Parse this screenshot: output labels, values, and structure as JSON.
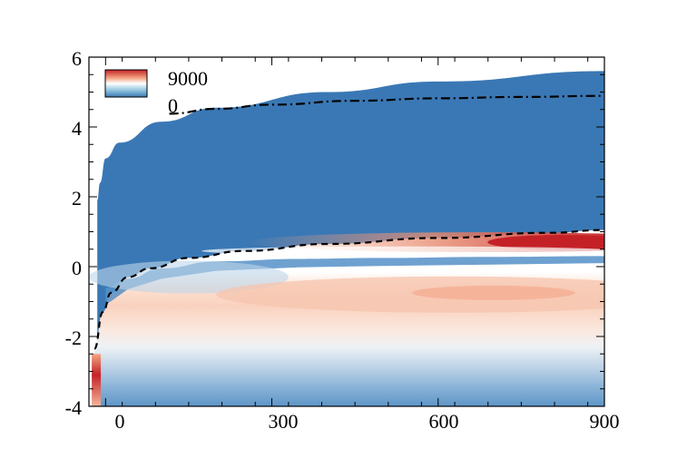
{
  "chart_data": {
    "type": "heatmap",
    "title": "",
    "xlabel": "",
    "ylabel": "",
    "xlim": [
      -30,
      900
    ],
    "ylim": [
      -4,
      6
    ],
    "x_ticks": [
      "0",
      "300",
      "600",
      "900"
    ],
    "y_ticks": [
      "6",
      "4",
      "2",
      "0",
      "-2",
      "-4"
    ],
    "legend": {
      "max_label": "9000",
      "min_label": "0",
      "placement": "top-left"
    },
    "colorbar": {
      "min": 0,
      "max": 9000,
      "low_color": "#3a78b5",
      "mid_color": "#ffffff",
      "high_color": "#c42127"
    },
    "upper_boundary": {
      "x": [
        -15,
        -15,
        -10,
        0,
        25,
        100,
        200,
        400,
        600,
        900
      ],
      "y": [
        1.9,
        1.9,
        2.4,
        3.1,
        3.55,
        4.15,
        4.55,
        5.0,
        5.3,
        5.6
      ]
    },
    "dashdot_curve": {
      "x": [
        115,
        200,
        300,
        450,
        600,
        750,
        900
      ],
      "y": [
        4.38,
        4.52,
        4.64,
        4.75,
        4.82,
        4.86,
        4.89
      ]
    },
    "dashed_curve": {
      "x": [
        -20,
        -5,
        10,
        40,
        80,
        150,
        250,
        400,
        600,
        800,
        900
      ],
      "y": [
        -2.35,
        -1.3,
        -0.75,
        -0.3,
        -0.05,
        0.25,
        0.45,
        0.65,
        0.82,
        0.97,
        1.05
      ]
    },
    "features": {
      "peak_band": {
        "x_start": 400,
        "x_end": 900,
        "y": 0.7,
        "peak_value": 9000
      },
      "secondary_band": {
        "x_start": 150,
        "x_end": 900,
        "y": -0.8,
        "value": 4500
      },
      "inlet_peak": {
        "x": -20,
        "y": -3.4,
        "value": 9000
      }
    }
  },
  "colors": {
    "background_field": "#3a78b5",
    "peak": "#c42127",
    "line": "#000000"
  }
}
